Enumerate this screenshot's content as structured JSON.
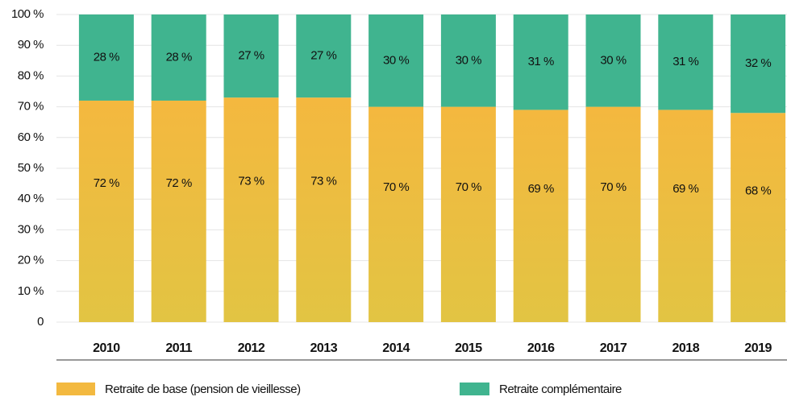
{
  "chart_data": {
    "type": "stacked_bar",
    "categories": [
      "2010",
      "2011",
      "2012",
      "2013",
      "2014",
      "2015",
      "2016",
      "2017",
      "2018",
      "2019"
    ],
    "series": [
      {
        "name": "Retraite de base (pension de vieillesse)",
        "color": "#f3b940",
        "values": [
          72,
          72,
          73,
          73,
          70,
          70,
          69,
          70,
          69,
          68
        ],
        "value_labels": [
          "72 %",
          "72 %",
          "73 %",
          "73 %",
          "70 %",
          "70 %",
          "69 %",
          "70 %",
          "69 %",
          "68 %"
        ]
      },
      {
        "name": "Retraite complémentaire",
        "color": "#40b48f",
        "values": [
          28,
          28,
          27,
          27,
          30,
          30,
          31,
          30,
          31,
          32
        ],
        "value_labels": [
          "28 %",
          "28 %",
          "27 %",
          "27 %",
          "30 %",
          "30 %",
          "31 %",
          "30 %",
          "31 %",
          "32 %"
        ]
      }
    ],
    "ylim": [
      0,
      100
    ],
    "yticks": [
      0,
      {
        "value": 10,
        "label": "10 %"
      },
      {
        "value": 20,
        "label": "20 %"
      },
      {
        "value": 30,
        "label": "30 %"
      },
      {
        "value": 40,
        "label": "40 %"
      },
      {
        "value": 50,
        "label": "50 %"
      },
      {
        "value": 60,
        "label": "60 %"
      },
      {
        "value": 70,
        "label": "70 %"
      },
      {
        "value": 80,
        "label": "80 %"
      },
      {
        "value": 90,
        "label": "90 %"
      },
      {
        "value": 100,
        "label": "100 %"
      }
    ],
    "grid": true
  }
}
